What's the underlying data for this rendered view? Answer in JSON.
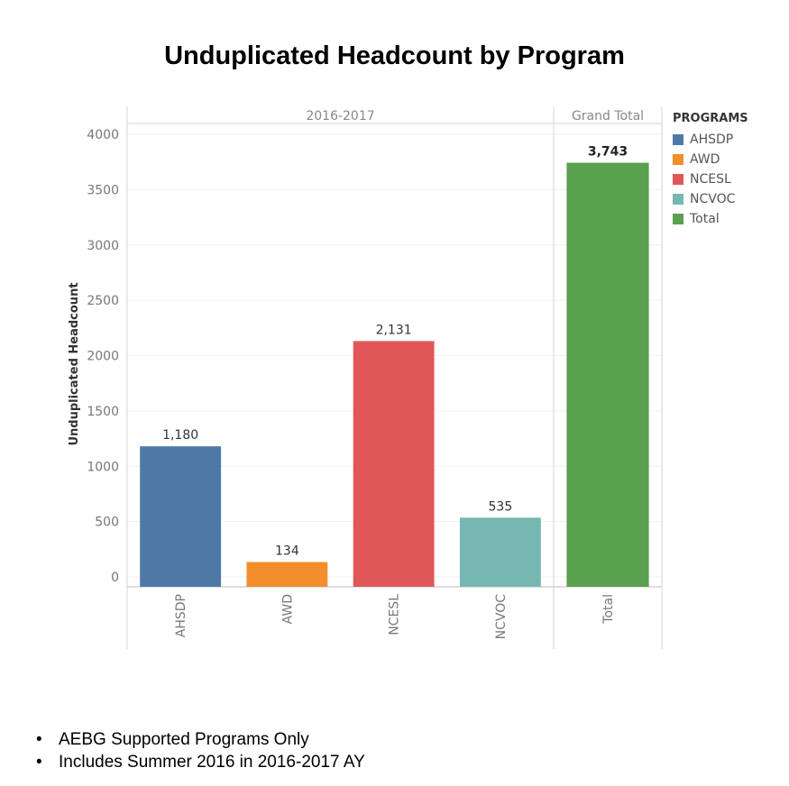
{
  "chart_data": {
    "type": "bar",
    "title": "Unduplicated Headcount by Program",
    "ylabel": "Unduplicated Headcount",
    "ylim": [
      0,
      4000
    ],
    "yticks": [
      0,
      500,
      1000,
      1500,
      2000,
      2500,
      3000,
      3500,
      4000
    ],
    "grid": true,
    "panels": [
      {
        "header": "2016-2017",
        "categories": [
          "AHSDP",
          "AWD",
          "NCESL",
          "NCVOC"
        ],
        "values": [
          1180,
          134,
          2131,
          535
        ],
        "labels": [
          "1,180",
          "134",
          "2,131",
          "535"
        ]
      },
      {
        "header": "Grand Total",
        "categories": [
          "Total"
        ],
        "values": [
          3743
        ],
        "labels": [
          "3,743"
        ]
      }
    ],
    "legend": {
      "title": "PROGRAMS",
      "placement": "right",
      "items": [
        {
          "name": "AHSDP",
          "color": "#4e79a7"
        },
        {
          "name": "AWD",
          "color": "#f28e2b"
        },
        {
          "name": "NCESL",
          "color": "#e15759"
        },
        {
          "name": "NCVOC",
          "color": "#76b7b2"
        },
        {
          "name": "Total",
          "color": "#59a14f"
        }
      ]
    }
  },
  "notes": [
    "AEBG Supported Programs Only",
    "Includes Summer 2016 in 2016-2017 AY"
  ],
  "bullet": "•"
}
